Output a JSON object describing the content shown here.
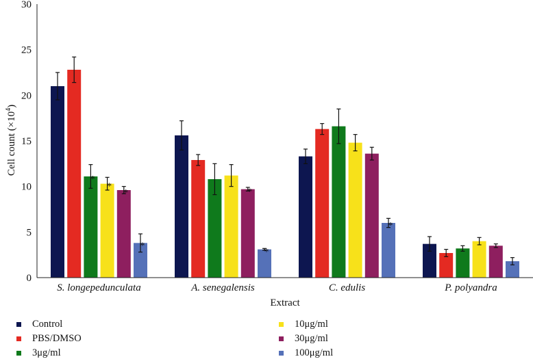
{
  "chart_data": {
    "type": "bar",
    "title": "",
    "xlabel": "Extract",
    "ylabel": "Cell count (×10",
    "ylabel_sup": "4",
    "ylabel_close": ")",
    "ylim": [
      0,
      30
    ],
    "yticks": [
      "0",
      "5",
      "10",
      "15",
      "20",
      "25",
      "30"
    ],
    "categories": [
      "S. longepedunculata",
      "A. senegalensis",
      "C. edulis",
      "P. polyandra"
    ],
    "series": [
      {
        "name": "Control",
        "color": "#0d1650",
        "values": [
          21.0,
          15.6,
          13.3,
          3.7
        ],
        "errors": [
          1.5,
          1.6,
          0.8,
          0.8
        ],
        "sig": [
          false,
          false,
          false,
          false
        ]
      },
      {
        "name": "PBS/DMSO",
        "color": "#e42a22",
        "values": [
          22.8,
          12.9,
          16.3,
          2.7
        ],
        "errors": [
          1.4,
          0.6,
          0.6,
          0.4
        ],
        "sig": [
          false,
          false,
          false,
          false
        ]
      },
      {
        "name": "3μg/ml",
        "color": "#0f7a1c",
        "values": [
          11.1,
          10.8,
          16.6,
          3.2
        ],
        "errors": [
          1.3,
          1.7,
          1.9,
          0.3
        ],
        "sig": [
          true,
          false,
          false,
          false
        ]
      },
      {
        "name": "10μg/ml",
        "color": "#f7e11a",
        "values": [
          10.3,
          11.2,
          14.8,
          4.0
        ],
        "errors": [
          0.7,
          1.2,
          0.9,
          0.4
        ],
        "sig": [
          true,
          false,
          false,
          false
        ]
      },
      {
        "name": "30μg/ml",
        "color": "#8e1f5f",
        "values": [
          9.6,
          9.7,
          13.6,
          3.5
        ],
        "errors": [
          0.4,
          0.2,
          0.7,
          0.2
        ],
        "sig": [
          true,
          true,
          false,
          false
        ]
      },
      {
        "name": "100μg/ml",
        "color": "#5571b8",
        "values": [
          3.8,
          3.1,
          6.0,
          1.8
        ],
        "errors": [
          1.0,
          0.1,
          0.5,
          0.4
        ],
        "sig": [
          true,
          true,
          true,
          false
        ]
      }
    ],
    "sig_marker": "*",
    "legend_position": "bottom"
  }
}
